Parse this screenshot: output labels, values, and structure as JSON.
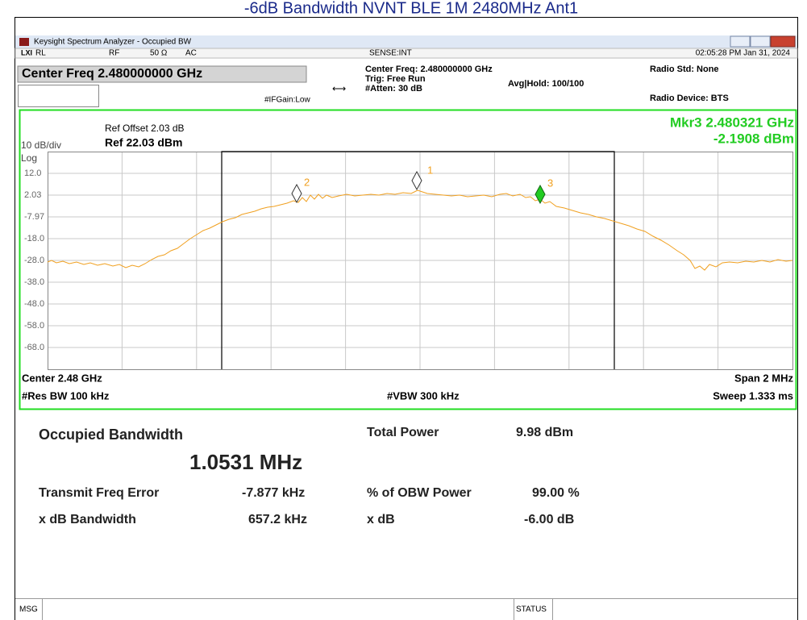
{
  "title": "-6dB Bandwidth NVNT BLE 1M 2480MHz Ant1",
  "window": {
    "title": "Keysight Spectrum Analyzer - Occupied BW",
    "status": [
      "RL",
      "RF",
      "50 Ω",
      "AC",
      "SENSE:INT",
      "02:05:28 PM Jan 31, 2024"
    ]
  },
  "settings": {
    "center_freq": "Center Freq 2.480000000 GHz",
    "info": [
      "Center Freq: 2.480000000 GHz",
      "Trig: Free Run",
      "#Atten: 30 dB"
    ],
    "avg_hold": "Avg|Hold: 100/100",
    "ifgain": "#IFGain:Low",
    "radio_std": "Radio Std: None",
    "radio_device": "Radio Device: BTS"
  },
  "plot": {
    "scale": "10 dB/div",
    "log": "Log",
    "ref_offset": "Ref Offset 2.03 dB",
    "ref": "Ref 22.03 dBm",
    "marker": [
      "Mkr3  2.480321 GHz",
      "-2.1908 dBm"
    ],
    "yticks": [
      "12.0",
      "2.03",
      "-7.97",
      "-18.0",
      "-28.0",
      "-38.0",
      "-48.0",
      "-58.0",
      "-68.0"
    ],
    "marker_labels": [
      "1",
      "2",
      "3"
    ],
    "center": "Center  2.48 GHz",
    "res_bw": "#Res BW  100 kHz",
    "vbw": "#VBW  300 kHz",
    "span": "Span 2 MHz",
    "sweep": "Sweep  1.333 ms"
  },
  "results": {
    "obw_label": "Occupied Bandwidth",
    "obw_value": "1.0531 MHz",
    "total_power_label": "Total Power",
    "total_power": "9.98 dBm",
    "freq_error_label": "Transmit Freq Error",
    "freq_error": "-7.877 kHz",
    "obw_power_label": "% of OBW Power",
    "obw_power": "99.00 %",
    "xdb_bw_label": "x dB Bandwidth",
    "xdb_bw": "657.2 kHz",
    "xdb_label": "x dB",
    "xdb": "-6.00 dB"
  },
  "statusbar": [
    "MSG",
    "STATUS"
  ]
}
